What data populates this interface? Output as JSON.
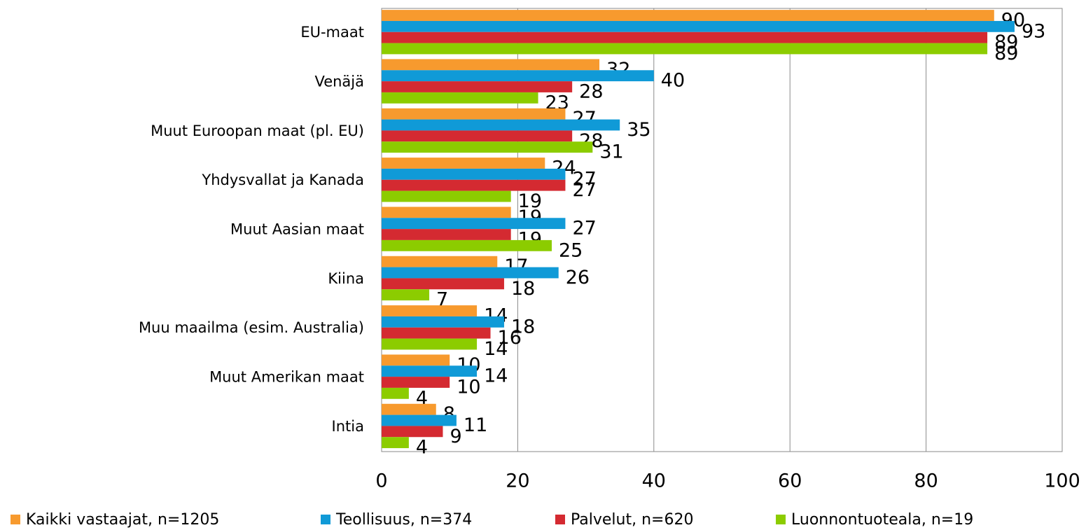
{
  "chart_data": {
    "type": "bar",
    "orientation": "horizontal",
    "categories": [
      "EU-maat",
      "Venäjä",
      "Muut Euroopan maat (pl. EU)",
      "Yhdysvallat ja Kanada",
      "Muut Aasian maat",
      "Kiina",
      "Muu maailma (esim. Australia)",
      "Muut Amerikan maat",
      "Intia"
    ],
    "series": [
      {
        "name": "Kaikki vastaajat, n=1205",
        "color": "#f79a2e",
        "values": [
          90,
          32,
          27,
          24,
          19,
          17,
          14,
          10,
          8
        ]
      },
      {
        "name": "Teollisuus, n=374",
        "color": "#109ad7",
        "values": [
          93,
          40,
          35,
          27,
          27,
          26,
          18,
          14,
          11
        ]
      },
      {
        "name": "Palvelut, n=620",
        "color": "#d42a31",
        "values": [
          89,
          28,
          28,
          27,
          19,
          18,
          16,
          10,
          9
        ]
      },
      {
        "name": "Luonnontuoteala, n=19",
        "color": "#8ccc00",
        "values": [
          89,
          23,
          31,
          19,
          25,
          7,
          14,
          4,
          4
        ]
      }
    ],
    "xlim": [
      0,
      100
    ],
    "xticks": [
      0,
      20,
      40,
      60,
      80,
      100
    ],
    "grid": true,
    "legend": "bottom"
  }
}
